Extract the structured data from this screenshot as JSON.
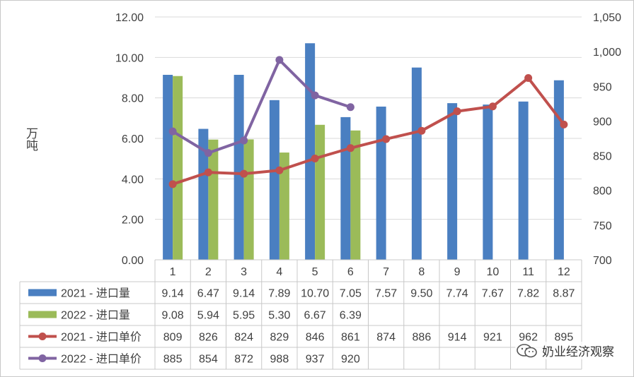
{
  "chart_data": {
    "type": "bar",
    "categories": [
      "1",
      "2",
      "3",
      "4",
      "5",
      "6",
      "7",
      "8",
      "9",
      "10",
      "11",
      "12"
    ],
    "ylabel": "万吨",
    "ylim": [
      0,
      12
    ],
    "y_ticks": [
      "0.00",
      "2.00",
      "4.00",
      "6.00",
      "8.00",
      "10.00",
      "12.00"
    ],
    "y2lim": [
      700,
      1050
    ],
    "y2_ticks": [
      "700",
      "750",
      "800",
      "850",
      "900",
      "950",
      "1,000",
      "1,050"
    ],
    "grid": true,
    "legend_placement": "data-table",
    "series": [
      {
        "name": "2021 - 进口量",
        "type": "bar",
        "axis": "left",
        "color": "#4a7fc1",
        "values": [
          9.14,
          6.47,
          9.14,
          7.89,
          10.7,
          7.05,
          7.57,
          9.5,
          7.74,
          7.67,
          7.82,
          8.87
        ],
        "labels": [
          "9.14",
          "6.47",
          "9.14",
          "7.89",
          "10.70",
          "7.05",
          "7.57",
          "9.50",
          "7.74",
          "7.67",
          "7.82",
          "8.87"
        ]
      },
      {
        "name": "2022 - 进口量",
        "type": "bar",
        "axis": "left",
        "color": "#9bbb59",
        "values": [
          9.08,
          5.94,
          5.95,
          5.3,
          6.67,
          6.39,
          null,
          null,
          null,
          null,
          null,
          null
        ],
        "labels": [
          "9.08",
          "5.94",
          "5.95",
          "5.30",
          "6.67",
          "6.39",
          "",
          "",
          "",
          "",
          "",
          ""
        ]
      },
      {
        "name": "2021 - 进口单价",
        "type": "line",
        "axis": "right",
        "color": "#c0504d",
        "values": [
          809,
          826,
          824,
          829,
          846,
          861,
          874,
          886,
          914,
          921,
          962,
          895
        ],
        "labels": [
          "809",
          "826",
          "824",
          "829",
          "846",
          "861",
          "874",
          "886",
          "914",
          "921",
          "962",
          "895"
        ]
      },
      {
        "name": "2022 - 进口单价",
        "type": "line",
        "axis": "right",
        "color": "#8064a2",
        "values": [
          885,
          854,
          872,
          988,
          937,
          920,
          null,
          null,
          null,
          null,
          null,
          null
        ],
        "labels": [
          "885",
          "854",
          "872",
          "988",
          "937",
          "920",
          "",
          "",
          "",
          "",
          "",
          ""
        ]
      }
    ]
  },
  "watermark": {
    "text": "奶业经济观察",
    "icon": "wechat-icon"
  }
}
